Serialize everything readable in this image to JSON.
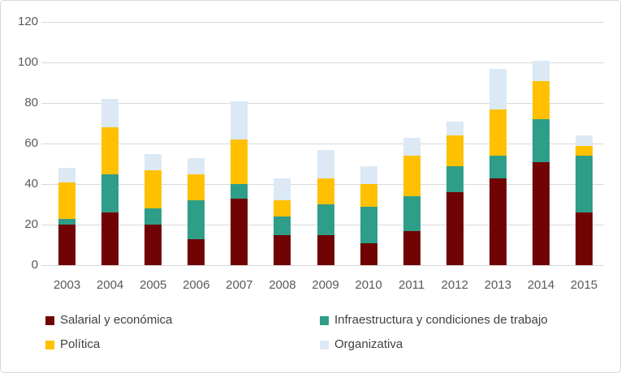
{
  "chart_data": {
    "type": "bar",
    "stacked": true,
    "title": "",
    "xlabel": "",
    "ylabel": "",
    "categories": [
      "2003",
      "2004",
      "2005",
      "2006",
      "2007",
      "2008",
      "2009",
      "2010",
      "2011",
      "2012",
      "2013",
      "2014",
      "2015"
    ],
    "series": [
      {
        "name": "Salarial y económica",
        "color": "#700303",
        "values": [
          20,
          26,
          20,
          13,
          33,
          15,
          15,
          11,
          17,
          36,
          43,
          51,
          26
        ]
      },
      {
        "name": "Infraestructura y condiciones de trabajo",
        "color": "#2F9E88",
        "values": [
          3,
          19,
          8,
          19,
          7,
          9,
          15,
          18,
          17,
          13,
          11,
          21,
          28
        ]
      },
      {
        "name": "Política",
        "color": "#FFC000",
        "values": [
          18,
          23,
          19,
          13,
          22,
          8,
          13,
          11,
          20,
          15,
          23,
          19,
          5
        ]
      },
      {
        "name": "Organizativa",
        "color": "#DCE9F5",
        "values": [
          7,
          14,
          8,
          8,
          19,
          11,
          14,
          9,
          9,
          7,
          20,
          10,
          5
        ]
      }
    ],
    "totals": [
      48,
      82,
      55,
      53,
      81,
      43,
      57,
      49,
      63,
      71,
      97,
      101,
      64
    ],
    "ylim": [
      0,
      120
    ],
    "yticks": [
      0,
      20,
      40,
      60,
      80,
      100,
      120
    ],
    "grid": true,
    "legend_position": "bottom",
    "gridline_color": "#D9D9D9",
    "axis_label_color": "#595959",
    "legend_text_color": "#404040"
  }
}
